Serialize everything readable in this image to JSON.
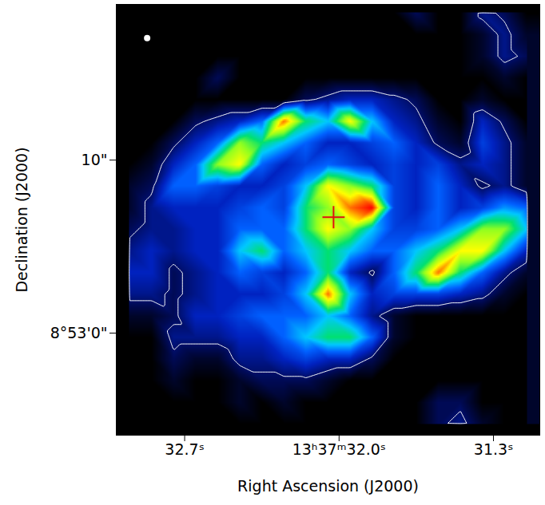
{
  "chart_data": {
    "type": "heatmap",
    "xlabel": "Right Ascension (J2000)",
    "ylabel": "Declination (J2000)",
    "xlim": [
      33.01,
      31.09
    ],
    "ylim": [
      -5.9,
      19.0
    ],
    "xticks": [
      {
        "value": 32.7,
        "label": "32.7ˢ"
      },
      {
        "value": 32.0,
        "label": "13ʰ37ᵐ32.0ˢ"
      },
      {
        "value": 31.3,
        "label": "31.3ˢ"
      }
    ],
    "yticks": [
      {
        "value": 0,
        "label": "8°53'0\""
      },
      {
        "value": 10,
        "label": "10\""
      }
    ],
    "x": [
      32.95,
      32.85,
      32.75,
      32.65,
      32.55,
      32.45,
      32.35,
      32.25,
      32.15,
      32.05,
      31.95,
      31.85,
      31.75,
      31.65,
      31.55,
      31.45,
      31.35,
      31.25,
      31.15
    ],
    "y": [
      18.5,
      17.25,
      16,
      14.75,
      13.5,
      12.25,
      11,
      9.75,
      8.5,
      7.25,
      6,
      4.75,
      3.5,
      2.25,
      1,
      -0.25,
      -1.5,
      -2.75,
      -4,
      -5.25
    ],
    "cells": [
      [
        0,
        0,
        0,
        0,
        0,
        0,
        0,
        0,
        0,
        0,
        0,
        0,
        0,
        1,
        0,
        0,
        1.5,
        1,
        0
      ],
      [
        0,
        0,
        0,
        0,
        0,
        0,
        0,
        0,
        0,
        0,
        0,
        0,
        0,
        0,
        0,
        0,
        0.5,
        1.5,
        0.5
      ],
      [
        0,
        0,
        0,
        0,
        0,
        0,
        0,
        0,
        0,
        0,
        0,
        0,
        0,
        0,
        0,
        0,
        0.5,
        1.5,
        1
      ],
      [
        0,
        0,
        0,
        0,
        1,
        0,
        0,
        0,
        0,
        0,
        0,
        0,
        0,
        0,
        0,
        0,
        0,
        0.5,
        0
      ],
      [
        0,
        0,
        0,
        0,
        0,
        0,
        0,
        0,
        1,
        1.5,
        2,
        2,
        1.5,
        1,
        0,
        0,
        0.5,
        0,
        0
      ],
      [
        0,
        0,
        0,
        1,
        1.5,
        2,
        3,
        8,
        5,
        4,
        7,
        4,
        2,
        1.5,
        0.5,
        0,
        2,
        1,
        0
      ],
      [
        0,
        0,
        1,
        2,
        3,
        6,
        5,
        4,
        3,
        2,
        2,
        2.5,
        3,
        2,
        1,
        0.5,
        2.5,
        1.5,
        0.5
      ],
      [
        0,
        0.5,
        2,
        3,
        6,
        7,
        3,
        2,
        2.5,
        3,
        2.5,
        2,
        2.5,
        2,
        2.5,
        1.5,
        2,
        1.5,
        0.5
      ],
      [
        0.5,
        1,
        3,
        3,
        2.5,
        2,
        2,
        2.5,
        4,
        7,
        6,
        5,
        2.5,
        2,
        3,
        2,
        1,
        1.5,
        0.5
      ],
      [
        0.5,
        1.5,
        2,
        2,
        2,
        2.5,
        3,
        2.5,
        5,
        6,
        8,
        9,
        2.5,
        2,
        3,
        2,
        2.5,
        3.5,
        3
      ],
      [
        1,
        1.5,
        1.5,
        2,
        2,
        3,
        3,
        3,
        5,
        7,
        6,
        4,
        2.5,
        2.5,
        3,
        4,
        6,
        6,
        4
      ],
      [
        1.5,
        2,
        1.5,
        2,
        2,
        4,
        5,
        3,
        4,
        5,
        4,
        3,
        3,
        4,
        5,
        7,
        7,
        4,
        2
      ],
      [
        2,
        2,
        1,
        1.5,
        2,
        3,
        2.5,
        2,
        3,
        5,
        2,
        1,
        3,
        5,
        8,
        5,
        3,
        1.5,
        0.5
      ],
      [
        1.5,
        1.5,
        1,
        1.5,
        2,
        2,
        2,
        2.5,
        4,
        8,
        4,
        2,
        2.5,
        2.5,
        2.5,
        2,
        1.5,
        0.5,
        0
      ],
      [
        0.5,
        0.5,
        1,
        2,
        2,
        2.5,
        3,
        3,
        3,
        4,
        3,
        1.5,
        0.5,
        0,
        0,
        0,
        0,
        0,
        0
      ],
      [
        0,
        0,
        1.5,
        1.5,
        1.5,
        2,
        2,
        3,
        4,
        5,
        5,
        3,
        0.5,
        0,
        0,
        0,
        0,
        0,
        0
      ],
      [
        0,
        0,
        1,
        0.5,
        0.5,
        1.5,
        1.5,
        2,
        2.5,
        2,
        2,
        1,
        0,
        0,
        0,
        0,
        0,
        0,
        0
      ],
      [
        0,
        0,
        0.5,
        0,
        0,
        0.5,
        1,
        1,
        1,
        0.5,
        0,
        0,
        0,
        0,
        0,
        0,
        0,
        0,
        0
      ],
      [
        0,
        0,
        0,
        0,
        0,
        0.5,
        0,
        0.5,
        0,
        0,
        0,
        0,
        0,
        0,
        1,
        1,
        0,
        0,
        0
      ],
      [
        0,
        0,
        0,
        0,
        0,
        0,
        0,
        0,
        0,
        0,
        0,
        0,
        0,
        0,
        1,
        1.5,
        0.5,
        0,
        0
      ]
    ],
    "zlim": [
      0,
      10
    ],
    "contour_level": 1.2,
    "marker": "plus",
    "center": {
      "x": 32.025,
      "y": 6.7
    },
    "beam": {
      "x": 32.87,
      "y": 17.05
    }
  }
}
